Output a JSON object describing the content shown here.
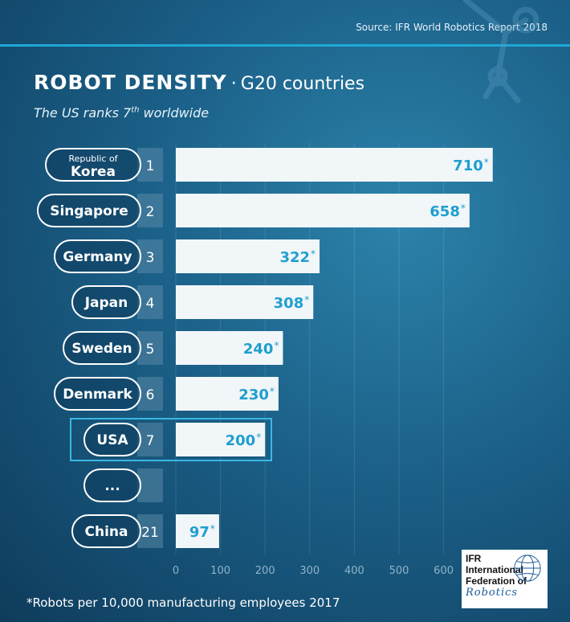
{
  "source": "Source: IFR World Robotics Report 2018",
  "title": {
    "main": "ROBOT DENSITY",
    "separator": "·",
    "sub": "G20 countries"
  },
  "subtitle": {
    "before": "The US ranks 7",
    "sup": "th",
    "after": " worldwide"
  },
  "footnote": "*Robots per 10,000 manufacturing employees 2017",
  "logo": {
    "line1": "IFR",
    "line2a": "International",
    "line2b": "Federation of",
    "line3": "Robotics"
  },
  "colors": {
    "bar": "#f1f6f9",
    "value": "#1f9fcf",
    "highlight": "#3ab7e2",
    "pill_border": "#ffffff",
    "rank_box": "#5a88a6"
  },
  "chart_data": {
    "type": "bar",
    "orientation": "horizontal",
    "title": "ROBOT DENSITY · G20 countries",
    "subtitle": "The US ranks 7th worldwide",
    "ylabel": "",
    "xlabel": "",
    "xlim": [
      0,
      600
    ],
    "xticks": [
      "0",
      "100",
      "200",
      "300",
      "400",
      "500",
      "600"
    ],
    "grid": true,
    "highlight": "USA",
    "rows": [
      {
        "label_lines": [
          "Republic of",
          "Korea"
        ],
        "rank": "1",
        "value": 710,
        "value_text": "710"
      },
      {
        "label_lines": [
          "Singapore"
        ],
        "rank": "2",
        "value": 658,
        "value_text": "658"
      },
      {
        "label_lines": [
          "Germany"
        ],
        "rank": "3",
        "value": 322,
        "value_text": "322"
      },
      {
        "label_lines": [
          "Japan"
        ],
        "rank": "4",
        "value": 308,
        "value_text": "308"
      },
      {
        "label_lines": [
          "Sweden"
        ],
        "rank": "5",
        "value": 240,
        "value_text": "240"
      },
      {
        "label_lines": [
          "Denmark"
        ],
        "rank": "6",
        "value": 230,
        "value_text": "230"
      },
      {
        "label_lines": [
          "USA"
        ],
        "rank": "7",
        "value": 200,
        "value_text": "200"
      },
      {
        "label_lines": [
          "..."
        ],
        "rank": "",
        "value": null,
        "value_text": ""
      },
      {
        "label_lines": [
          "China"
        ],
        "rank": "21",
        "value": 97,
        "value_text": "97"
      }
    ],
    "value_suffix": "*"
  }
}
